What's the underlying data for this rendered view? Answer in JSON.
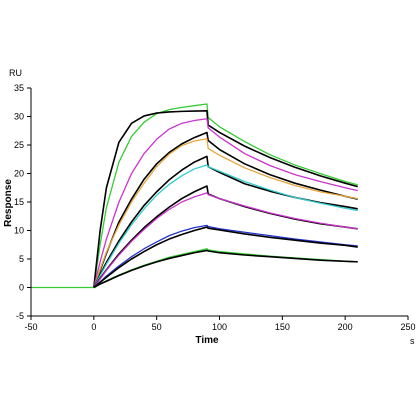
{
  "chart_data": {
    "type": "line",
    "title": "",
    "xlabel": "Time",
    "ylabel": "Response",
    "x_unit": "s",
    "y_unit": "RU",
    "xlim": [
      -50,
      250
    ],
    "ylim": [
      -5,
      35
    ],
    "x_ticks": [
      -50,
      0,
      50,
      100,
      150,
      200,
      250
    ],
    "y_ticks": [
      -5,
      0,
      5,
      10,
      15,
      20,
      25,
      30,
      35
    ],
    "grid": false,
    "legend": "none",
    "x_tick_labels": [
      "-50",
      "0",
      "50",
      "100",
      "150",
      "200",
      "250"
    ],
    "y_tick_labels": [
      "-5",
      "0",
      "5",
      "10",
      "15",
      "20",
      "25",
      "30",
      "35"
    ],
    "association_end": 90,
    "series": [
      {
        "color": "#33cc33",
        "x": [
          -50,
          0,
          5,
          10,
          20,
          30,
          40,
          50,
          60,
          70,
          80,
          90,
          91,
          100,
          120,
          140,
          160,
          180,
          200,
          210
        ],
        "y": [
          0,
          0,
          7.5,
          14,
          22,
          26.5,
          29,
          30.5,
          31.2,
          31.6,
          31.9,
          32.2,
          29.8,
          28.2,
          25.6,
          23.3,
          21.5,
          20,
          18.6,
          18
        ]
      },
      {
        "color": "#000000",
        "x": [
          0,
          5,
          10,
          20,
          30,
          40,
          50,
          60,
          70,
          80,
          90,
          91,
          100,
          120,
          140,
          160,
          180,
          200,
          210
        ],
        "y": [
          0,
          10,
          17.5,
          25.5,
          28.8,
          30.1,
          30.6,
          30.8,
          30.9,
          30.95,
          31,
          28.5,
          27.2,
          24.8,
          22.8,
          21.1,
          19.6,
          18.3,
          17.7
        ]
      },
      {
        "color": "#cc33cc",
        "x": [
          0,
          5,
          10,
          20,
          30,
          40,
          50,
          60,
          70,
          80,
          90,
          91,
          100,
          120,
          140,
          160,
          180,
          200,
          210
        ],
        "y": [
          0,
          4.5,
          8.5,
          15,
          20,
          23.5,
          26,
          27.8,
          28.8,
          29.3,
          29.6,
          28,
          26.4,
          23.5,
          21.4,
          19.8,
          18.6,
          17.5,
          17
        ]
      },
      {
        "color": "#000000",
        "x": [
          0,
          5,
          10,
          20,
          30,
          40,
          50,
          60,
          70,
          80,
          90,
          91,
          100,
          120,
          140,
          160,
          180,
          200,
          210
        ],
        "y": [
          0,
          3,
          6,
          11.5,
          15.5,
          19,
          21.7,
          23.7,
          25.2,
          26.3,
          27.2,
          25.8,
          24.2,
          21.7,
          19.8,
          18.3,
          17.1,
          16,
          15.5
        ]
      },
      {
        "color": "#e6a63c",
        "x": [
          0,
          5,
          10,
          20,
          30,
          40,
          50,
          60,
          70,
          80,
          90,
          91,
          100,
          120,
          140,
          160,
          180,
          200,
          210
        ],
        "y": [
          0,
          3.2,
          6.2,
          11,
          15,
          18.3,
          21.2,
          23.4,
          24.9,
          25.7,
          26.1,
          24.4,
          23.2,
          21,
          19.3,
          17.9,
          16.8,
          16,
          15.6
        ]
      },
      {
        "color": "#000000",
        "x": [
          0,
          5,
          10,
          20,
          30,
          40,
          50,
          60,
          70,
          80,
          90,
          91,
          100,
          120,
          140,
          160,
          180,
          200,
          210
        ],
        "y": [
          0,
          2.3,
          4.4,
          8.2,
          11.5,
          14.4,
          16.8,
          18.9,
          20.6,
          22,
          23,
          21.2,
          20.2,
          18.2,
          16.9,
          15.8,
          14.9,
          14.2,
          13.8
        ]
      },
      {
        "color": "#33cccc",
        "x": [
          0,
          5,
          10,
          20,
          30,
          40,
          50,
          60,
          70,
          80,
          90,
          91,
          100,
          120,
          140,
          160,
          180,
          200,
          210
        ],
        "y": [
          0,
          2.1,
          4.1,
          7.8,
          11,
          13.8,
          16.2,
          18.1,
          19.6,
          20.8,
          21.5,
          21.2,
          20.4,
          18.6,
          17.1,
          15.8,
          14.8,
          13.9,
          13.5
        ]
      },
      {
        "color": "#000000",
        "x": [
          0,
          5,
          10,
          20,
          30,
          40,
          50,
          60,
          70,
          80,
          90,
          91,
          100,
          120,
          140,
          160,
          180,
          200,
          210
        ],
        "y": [
          0,
          1.6,
          3.1,
          5.9,
          8.3,
          10.5,
          12.4,
          14.1,
          15.6,
          16.8,
          17.8,
          16.4,
          15.6,
          14.2,
          13,
          12,
          11.2,
          10.6,
          10.3
        ]
      },
      {
        "color": "#cc33cc",
        "x": [
          0,
          5,
          10,
          20,
          30,
          40,
          50,
          60,
          70,
          80,
          90,
          91,
          100,
          120,
          140,
          160,
          180,
          200,
          210
        ],
        "y": [
          0,
          1.5,
          3,
          5.7,
          8.1,
          10.2,
          12.1,
          13.7,
          15,
          15.9,
          16.6,
          16.3,
          15.6,
          14.3,
          13.1,
          12.1,
          11.3,
          10.6,
          10.3
        ]
      },
      {
        "color": "#2233cc",
        "x": [
          0,
          5,
          10,
          20,
          30,
          40,
          50,
          60,
          70,
          80,
          90,
          91,
          100,
          120,
          140,
          160,
          180,
          200,
          210
        ],
        "y": [
          0,
          1,
          2,
          3.8,
          5.4,
          6.8,
          8,
          9.1,
          9.9,
          10.5,
          10.9,
          10.7,
          10.3,
          9.7,
          9.1,
          8.5,
          8,
          7.5,
          7.3
        ]
      },
      {
        "color": "#000000",
        "x": [
          0,
          5,
          10,
          20,
          30,
          40,
          50,
          60,
          70,
          80,
          90,
          91,
          100,
          120,
          140,
          160,
          180,
          200,
          210
        ],
        "y": [
          0,
          0.9,
          1.8,
          3.5,
          5,
          6.3,
          7.5,
          8.5,
          9.3,
          10,
          10.6,
          10.4,
          10.1,
          9.4,
          8.8,
          8.3,
          7.8,
          7.4,
          7.1
        ]
      },
      {
        "color": "#33cc33",
        "x": [
          0,
          5,
          10,
          20,
          30,
          40,
          50,
          60,
          70,
          80,
          90,
          91,
          100,
          120,
          140,
          160,
          180,
          200,
          210
        ],
        "y": [
          0,
          0.6,
          1.2,
          2.2,
          3.1,
          3.9,
          4.6,
          5.3,
          5.8,
          6.3,
          6.8,
          6.6,
          6.3,
          5.9,
          5.5,
          5.2,
          4.9,
          4.6,
          4.5
        ]
      },
      {
        "color": "#000000",
        "x": [
          0,
          5,
          10,
          20,
          30,
          40,
          50,
          60,
          70,
          80,
          90,
          91,
          100,
          120,
          140,
          160,
          180,
          200,
          210
        ],
        "y": [
          0,
          0.6,
          1.1,
          2.1,
          3,
          3.8,
          4.5,
          5.1,
          5.6,
          6.1,
          6.5,
          6.4,
          6.1,
          5.7,
          5.4,
          5.1,
          4.8,
          4.6,
          4.5
        ]
      }
    ]
  }
}
